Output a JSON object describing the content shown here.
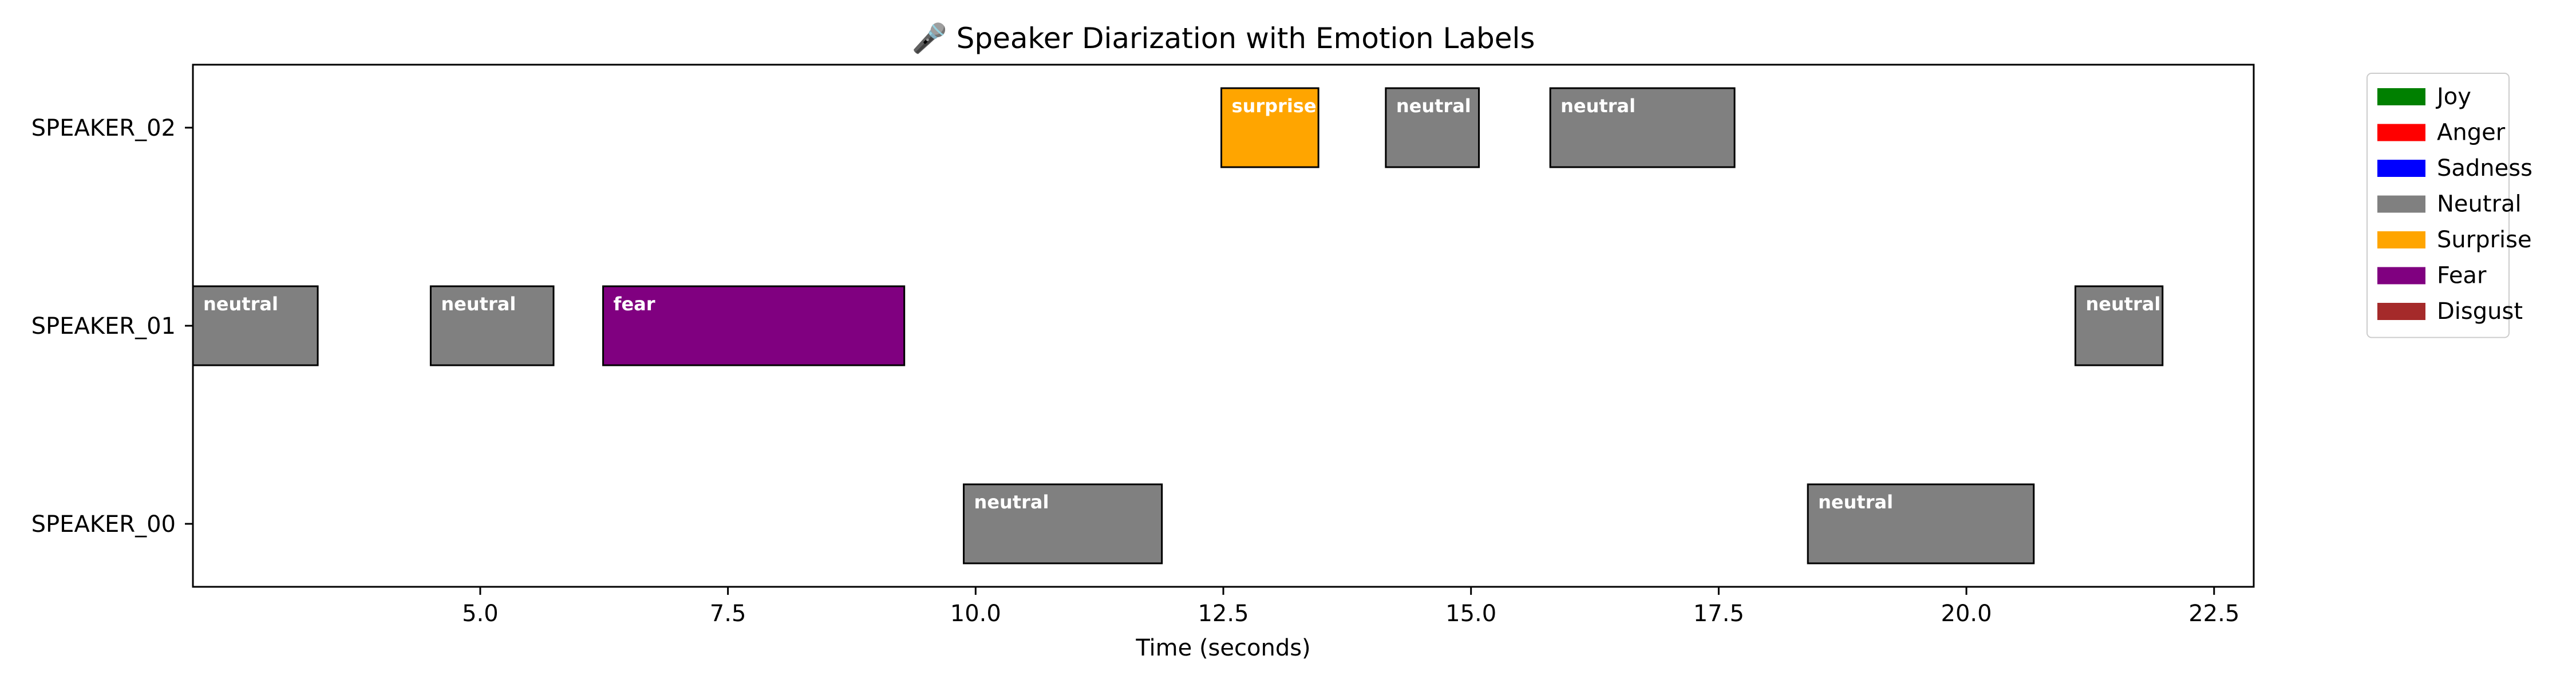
{
  "chart_data": {
    "type": "bar",
    "subtype": "timeline",
    "title": "🎤 Speaker Diarization with Emotion Labels",
    "xlabel": "Time (seconds)",
    "ylabel": "",
    "xlim": [
      2.1,
      22.9
    ],
    "x_ticks": [
      5.0,
      7.5,
      10.0,
      12.5,
      15.0,
      17.5,
      20.0,
      22.5
    ],
    "x_tick_labels": [
      "5.0",
      "7.5",
      "10.0",
      "12.5",
      "15.0",
      "17.5",
      "20.0",
      "22.5"
    ],
    "speakers": [
      "SPEAKER_00",
      "SPEAKER_01",
      "SPEAKER_02"
    ],
    "grid": false,
    "legend_placement": "outside-top-right",
    "legend": [
      {
        "label": "Joy",
        "color": "#008000"
      },
      {
        "label": "Anger",
        "color": "#ff0000"
      },
      {
        "label": "Sadness",
        "color": "#0000ff"
      },
      {
        "label": "Neutral",
        "color": "#808080"
      },
      {
        "label": "Surprise",
        "color": "#ffa500"
      },
      {
        "label": "Fear",
        "color": "#800080"
      },
      {
        "label": "Disgust",
        "color": "#a52a2a"
      }
    ],
    "emotion_colors": {
      "joy": "#008000",
      "anger": "#ff0000",
      "sadness": "#0000ff",
      "neutral": "#808080",
      "surprise": "#ffa500",
      "fear": "#800080",
      "disgust": "#a52a2a"
    },
    "segments": [
      {
        "speaker": "SPEAKER_01",
        "start": 2.1,
        "end": 3.36,
        "emotion": "neutral",
        "label": "neutral"
      },
      {
        "speaker": "SPEAKER_01",
        "start": 4.5,
        "end": 5.74,
        "emotion": "neutral",
        "label": "neutral"
      },
      {
        "speaker": "SPEAKER_01",
        "start": 6.24,
        "end": 9.28,
        "emotion": "fear",
        "label": "fear"
      },
      {
        "speaker": "SPEAKER_00",
        "start": 9.88,
        "end": 11.88,
        "emotion": "neutral",
        "label": "neutral"
      },
      {
        "speaker": "SPEAKER_02",
        "start": 12.48,
        "end": 13.46,
        "emotion": "surprise",
        "label": "surprise"
      },
      {
        "speaker": "SPEAKER_02",
        "start": 14.14,
        "end": 15.08,
        "emotion": "neutral",
        "label": "neutral"
      },
      {
        "speaker": "SPEAKER_02",
        "start": 15.8,
        "end": 17.66,
        "emotion": "neutral",
        "label": "neutral"
      },
      {
        "speaker": "SPEAKER_00",
        "start": 18.4,
        "end": 20.68,
        "emotion": "neutral",
        "label": "neutral"
      },
      {
        "speaker": "SPEAKER_01",
        "start": 21.1,
        "end": 21.98,
        "emotion": "neutral",
        "label": "neutral"
      }
    ]
  }
}
